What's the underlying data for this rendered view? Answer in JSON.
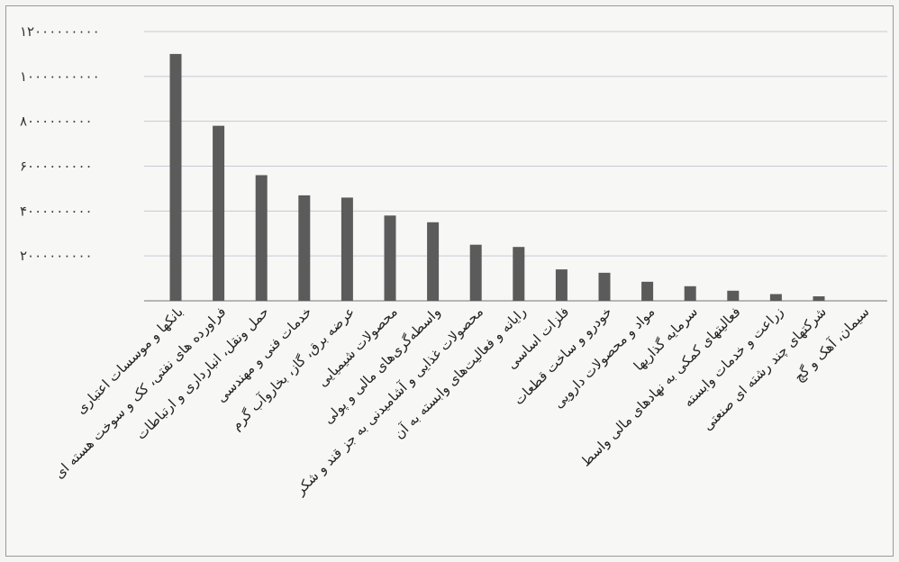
{
  "chart_data": {
    "type": "bar",
    "y_tick_labels": [
      "",
      "۲۰۰۰۰۰۰۰۰۰",
      "۴۰۰۰۰۰۰۰۰۰",
      "۶۰۰۰۰۰۰۰۰۰",
      "۸۰۰۰۰۰۰۰۰۰",
      "۱۰۰۰۰۰۰۰۰۰۰",
      "۱۲۰۰۰۰۰۰۰۰۰"
    ],
    "ylim": [
      0,
      12000000000
    ],
    "grid": true,
    "bar_color": "#5b5b5b",
    "categories": [
      "بانکها و موسسات اعتباری",
      "فراورده های نفتی، کک و سوخت هسته ای",
      "حمل ونقل، انبارداری و ارتباطات",
      "خدمات فنی و مهندسی",
      "عرضه برق، گاز، بخاروآب گرم",
      "محصولات شیمیایی",
      "واسطه‌گری‌های مالی و پولی",
      "محصولات غذایی و آشامیدنی به جز قند و شکر",
      "رایانه و فعالیت‌های وابسته به آن",
      "فلزات اساسی",
      "خودرو و ساخت قطعات",
      "مواد و محصولات دارویی",
      "سرمایه گذاریها",
      "فعالیتهای کمکی به نهادهای مالی واسط",
      "زراعت و خدمات وابسته",
      "شرکتهای چند رشته ای صنعتی",
      "سیمان، آهک و گچ"
    ],
    "values": [
      11000000000,
      7800000000,
      5600000000,
      4700000000,
      4600000000,
      3800000000,
      3500000000,
      2500000000,
      2400000000,
      1400000000,
      1250000000,
      850000000,
      650000000,
      450000000,
      300000000,
      200000000,
      0
    ]
  }
}
